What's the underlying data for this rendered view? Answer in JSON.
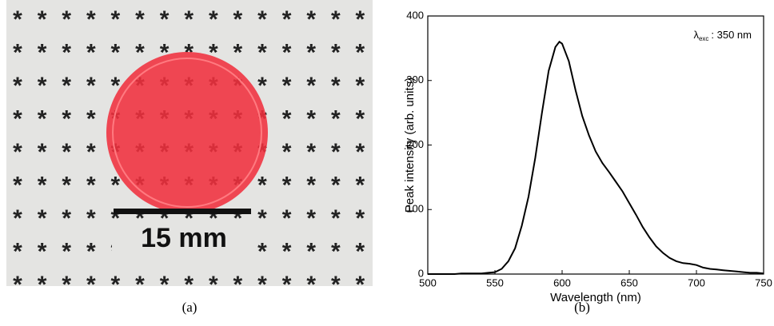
{
  "panel_a": {
    "scale_label": "15 mm",
    "caption": "(a)"
  },
  "panel_b": {
    "caption": "(b)"
  },
  "chart_data": {
    "type": "line",
    "xlabel": "Wavelength (nm)",
    "ylabel": "Peak intensity (arb. units)",
    "annotation": {
      "symbol": "λ",
      "subscript": "exc",
      "text": ": 350 nm"
    },
    "x": [
      500,
      505,
      510,
      515,
      520,
      525,
      530,
      535,
      540,
      545,
      550,
      555,
      560,
      565,
      570,
      575,
      580,
      585,
      590,
      595,
      598,
      600,
      605,
      610,
      615,
      620,
      625,
      630,
      635,
      640,
      645,
      650,
      655,
      660,
      665,
      670,
      675,
      680,
      685,
      690,
      695,
      700,
      705,
      710,
      715,
      720,
      725,
      730,
      735,
      740,
      745,
      750
    ],
    "values": [
      0,
      0,
      0,
      0,
      0,
      1,
      1,
      1,
      1,
      2,
      3,
      8,
      20,
      40,
      75,
      120,
      180,
      250,
      315,
      352,
      360,
      357,
      330,
      285,
      245,
      215,
      190,
      172,
      158,
      143,
      128,
      110,
      92,
      73,
      57,
      43,
      33,
      25,
      20,
      17,
      16,
      14,
      10,
      8,
      7,
      6,
      5,
      4,
      3,
      2,
      2,
      1
    ],
    "color": "#000000",
    "xlim": [
      500,
      750
    ],
    "xticks": [
      500,
      550,
      600,
      650,
      700,
      750
    ],
    "ylim": [
      0,
      400
    ],
    "yticks": [
      0,
      100,
      200,
      300,
      400
    ]
  }
}
